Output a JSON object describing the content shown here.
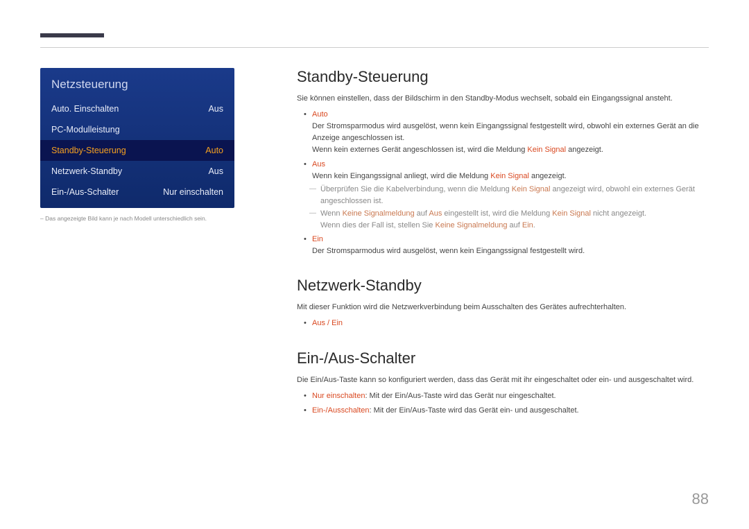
{
  "colors": {
    "accent_orange": "#d94820",
    "menu_bg_top": "#1a3a8a",
    "menu_bg_bottom": "#0f2a6b",
    "menu_selected_bg": "#0a1450",
    "menu_selected_text": "#f5a020",
    "top_bar": "#3a3a4a",
    "text_gray": "#888888"
  },
  "menu": {
    "title": "Netzsteuerung",
    "items": [
      {
        "label": "Auto. Einschalten",
        "value": "Aus",
        "selected": false
      },
      {
        "label": "PC-Modulleistung",
        "value": "",
        "selected": false
      },
      {
        "label": "Standby-Steuerung",
        "value": "Auto",
        "selected": true
      },
      {
        "label": "Netzwerk-Standby",
        "value": "Aus",
        "selected": false
      },
      {
        "label": "Ein-/Aus-Schalter",
        "value": "Nur einschalten",
        "selected": false
      }
    ],
    "note": "– Das angezeigte Bild kann je nach Modell unterschiedlich sein."
  },
  "sections": {
    "standby": {
      "title": "Standby-Steuerung",
      "desc": "Sie können einstellen, dass der Bildschirm in den Standby-Modus wechselt, sobald ein Eingangssignal ansteht.",
      "auto": {
        "head": "Auto",
        "line1": "Der Stromsparmodus wird ausgelöst, wenn kein Eingangssignal festgestellt wird, obwohl ein externes Gerät an die Anzeige angeschlossen ist.",
        "line2_pre": "Wenn kein externes Gerät angeschlossen ist, wird die Meldung ",
        "line2_kw": "Kein Signal",
        "line2_post": " angezeigt."
      },
      "aus": {
        "head": "Aus",
        "line1_pre": "Wenn kein Eingangssignal anliegt, wird die Meldung ",
        "line1_kw": "Kein Signal",
        "line1_post": " angezeigt.",
        "note1_pre": "Überprüfen Sie die Kabelverbindung, wenn die Meldung ",
        "note1_kw": "Kein Signal",
        "note1_post": " angezeigt wird, obwohl ein externes Gerät angeschlossen ist.",
        "note2_pre": "Wenn ",
        "note2_kw1": "Keine Signalmeldung",
        "note2_mid1": " auf ",
        "note2_kw2": "Aus",
        "note2_mid2": " eingestellt ist, wird die Meldung ",
        "note2_kw3": "Kein Signal",
        "note2_post": " nicht angezeigt.",
        "note2b_pre": "Wenn dies der Fall ist, stellen Sie ",
        "note2b_kw1": "Keine Signalmeldung",
        "note2b_mid": " auf ",
        "note2b_kw2": "Ein",
        "note2b_post": "."
      },
      "ein": {
        "head": "Ein",
        "line1": "Der Stromsparmodus wird ausgelöst, wenn kein Eingangssignal festgestellt wird."
      }
    },
    "netzwerk": {
      "title": "Netzwerk-Standby",
      "desc": "Mit dieser Funktion wird die Netzwerkverbindung beim Ausschalten des Gerätes aufrechterhalten.",
      "options": "Aus / Ein"
    },
    "schalter": {
      "title": "Ein-/Aus-Schalter",
      "desc": "Die Ein/Aus-Taste kann so konfiguriert werden, dass das Gerät mit ihr eingeschaltet oder ein- und ausgeschaltet wird.",
      "opt1_head": "Nur einschalten",
      "opt1_text": ": Mit der Ein/Aus-Taste wird das Gerät nur eingeschaltet.",
      "opt2_head": "Ein-/Ausschalten",
      "opt2_text": ": Mit der Ein/Aus-Taste wird das Gerät ein- und ausgeschaltet."
    }
  },
  "page_number": "88"
}
